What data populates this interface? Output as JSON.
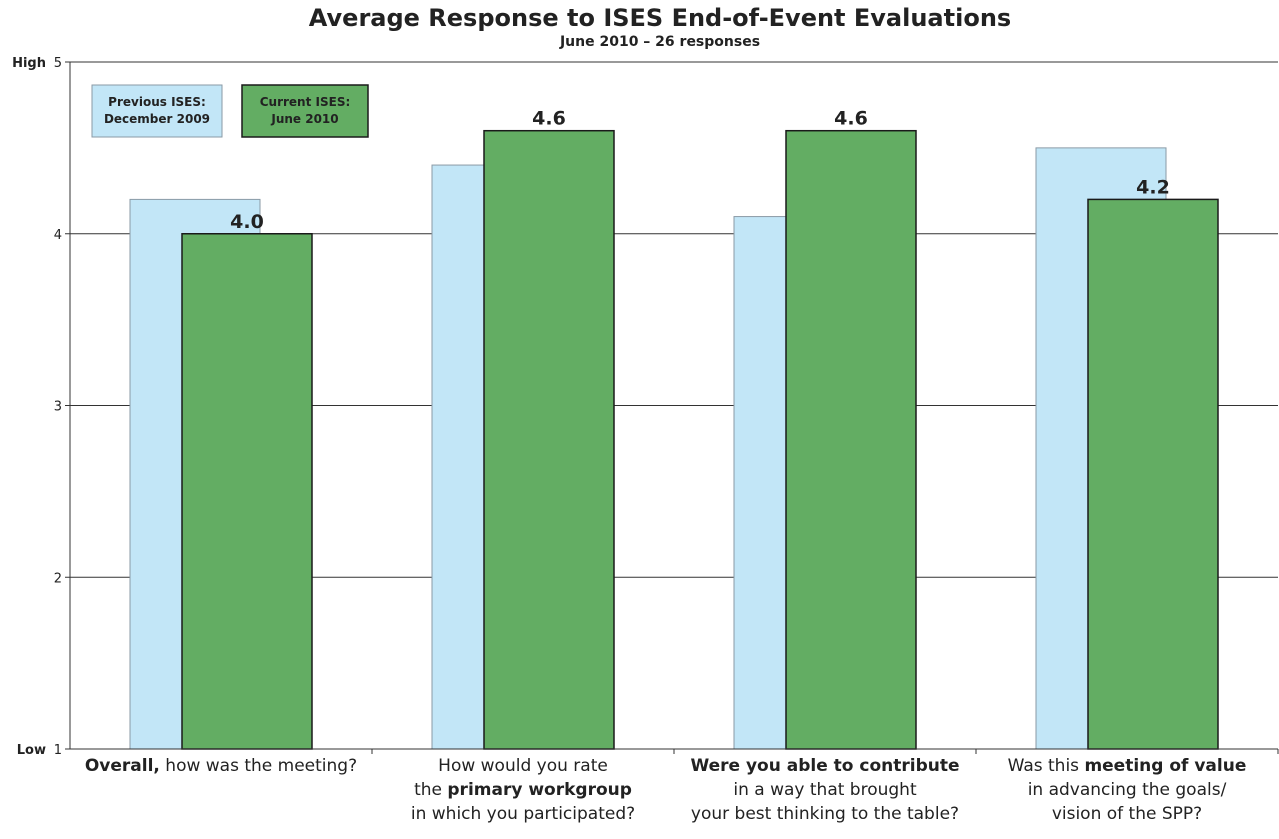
{
  "chart_data": {
    "type": "bar",
    "title": "Average Response to ISES End-of-Event Evaluations",
    "subtitle": "June 2010 – 26 responses",
    "ylim": [
      1,
      5
    ],
    "yticks": [
      1,
      2,
      3,
      4,
      5
    ],
    "y_high_label": "High",
    "y_low_label": "Low",
    "grid": true,
    "legend_position": "top-left",
    "categories": [
      [
        {
          "t": "Overall,",
          "b": true
        },
        {
          "t": " how was the meeting?",
          "b": false
        }
      ],
      [
        {
          "t": "How would you rate",
          "b": false
        },
        {
          "t": "\n",
          "b": false
        },
        {
          "t": "the ",
          "b": false
        },
        {
          "t": "primary workgroup",
          "b": true
        },
        {
          "t": "\n",
          "b": false
        },
        {
          "t": "in which you participated?",
          "b": false
        }
      ],
      [
        {
          "t": "Were you able to contribute",
          "b": true
        },
        {
          "t": "\n",
          "b": false
        },
        {
          "t": "in a way that brought",
          "b": false
        },
        {
          "t": "\n",
          "b": false
        },
        {
          "t": "your best thinking to the table?",
          "b": false
        }
      ],
      [
        {
          "t": "Was this ",
          "b": false
        },
        {
          "t": "meeting of value",
          "b": true
        },
        {
          "t": "\n",
          "b": false
        },
        {
          "t": "in advancing the goals/",
          "b": false
        },
        {
          "t": "\n",
          "b": false
        },
        {
          "t": "vision of the SPP?",
          "b": false
        }
      ]
    ],
    "series": [
      {
        "name": "Previous ISES:\nDecember 2009",
        "color": "#c2e6f7",
        "stroke": "#8a9aa6",
        "values": [
          4.2,
          4.4,
          4.1,
          4.5
        ],
        "labels": [
          "",
          "",
          "",
          ""
        ]
      },
      {
        "name": "Current ISES:\nJune 2010",
        "color": "#63ad63",
        "stroke": "#1a1a1a",
        "values": [
          4.0,
          4.6,
          4.6,
          4.2
        ],
        "labels": [
          "4.0",
          "4.6",
          "4.6",
          "4.2"
        ]
      }
    ]
  }
}
